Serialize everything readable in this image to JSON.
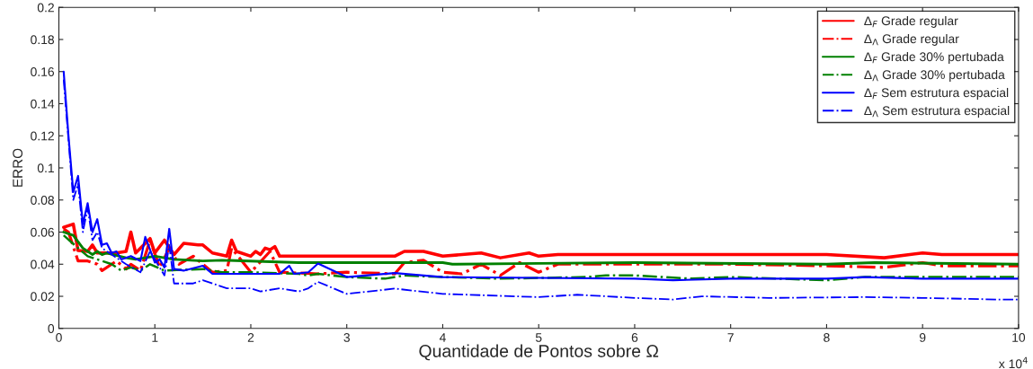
{
  "chart_data": {
    "type": "line",
    "xlabel": "Quantidade de Pontos sobre Ω",
    "ylabel": "ERRO",
    "xlim": [
      0,
      10
    ],
    "ylim": [
      0,
      0.2
    ],
    "xticks": [
      0,
      1,
      2,
      3,
      4,
      5,
      6,
      7,
      8,
      9,
      10
    ],
    "yticks": [
      0,
      0.02,
      0.04,
      0.06,
      0.08,
      0.1,
      0.12,
      0.14,
      0.16,
      0.18,
      0.2
    ],
    "legend": "top right",
    "grid": false,
    "marker": "none",
    "annotations": [
      "x 10$^{4}$"
    ],
    "series": [
      {
        "name": "Δ$_{F}$ Grade regular",
        "color": "#ff0000",
        "line_style": "solid",
        "x": [
          0.05,
          0.15,
          0.2,
          0.3,
          0.35,
          0.4,
          0.6,
          0.7,
          0.75,
          0.8,
          0.95,
          1.0,
          1.1,
          1.2,
          1.3,
          1.45,
          1.5,
          1.6,
          1.75,
          1.8,
          1.85,
          2.0,
          2.05,
          2.1,
          2.15,
          2.2,
          2.25,
          2.3,
          3.0,
          3.5,
          3.6,
          3.8,
          4.0,
          4.4,
          4.6,
          4.9,
          5.0,
          5.2,
          6.0,
          7.0,
          8.0,
          8.6,
          9.0,
          9.2,
          10.0
        ],
        "values": [
          0.063,
          0.065,
          0.0485,
          0.048,
          0.052,
          0.047,
          0.047,
          0.048,
          0.06,
          0.047,
          0.056,
          0.047,
          0.055,
          0.046,
          0.053,
          0.052,
          0.052,
          0.047,
          0.045,
          0.055,
          0.048,
          0.045,
          0.048,
          0.046,
          0.05,
          0.049,
          0.051,
          0.045,
          0.045,
          0.045,
          0.048,
          0.048,
          0.045,
          0.047,
          0.044,
          0.047,
          0.045,
          0.046,
          0.046,
          0.046,
          0.046,
          0.044,
          0.047,
          0.046,
          0.046
        ]
      },
      {
        "name": "Δ$_{Λ}$ Grade regular",
        "color": "#ff0000",
        "line_style": "dashed",
        "x": [
          0.05,
          0.1,
          0.2,
          0.3,
          0.4,
          0.45,
          0.6,
          0.7,
          0.75,
          0.85,
          0.95,
          1.05,
          1.15,
          1.25,
          1.4,
          1.6,
          1.75,
          1.8,
          2.0,
          2.2,
          2.3,
          2.7,
          3.0,
          3.5,
          3.6,
          3.8,
          4.0,
          4.2,
          4.4,
          4.6,
          4.8,
          5.0,
          5.2,
          6.0,
          7.0,
          8.0,
          8.6,
          9.0,
          9.2,
          10.0
        ],
        "values": [
          0.062,
          0.06,
          0.042,
          0.042,
          0.04,
          0.036,
          0.042,
          0.037,
          0.04,
          0.036,
          0.055,
          0.038,
          0.05,
          0.04,
          0.045,
          0.035,
          0.036,
          0.05,
          0.035,
          0.048,
          0.035,
          0.034,
          0.035,
          0.034,
          0.041,
          0.0425,
          0.035,
          0.034,
          0.04,
          0.033,
          0.041,
          0.035,
          0.04,
          0.04,
          0.04,
          0.039,
          0.038,
          0.041,
          0.039,
          0.039
        ]
      },
      {
        "name": "Δ$_{F}$ Grade 30% pertubada",
        "color": "#008000",
        "line_style": "solid",
        "x": [
          0.05,
          0.15,
          0.25,
          0.35,
          0.4,
          0.45,
          0.5,
          0.7,
          0.8,
          1.0,
          1.2,
          1.5,
          1.7,
          2.5,
          3.0,
          4.0,
          4.1,
          5.0,
          6.0,
          8.0,
          8.5,
          10.0
        ],
        "values": [
          0.06,
          0.058,
          0.05,
          0.046,
          0.048,
          0.046,
          0.047,
          0.044,
          0.043,
          0.045,
          0.043,
          0.042,
          0.0425,
          0.041,
          0.041,
          0.041,
          0.04,
          0.0405,
          0.041,
          0.04,
          0.041,
          0.04
        ]
      },
      {
        "name": "Δ$_{Λ}$ Grade 30% pertubada",
        "color": "#008000",
        "line_style": "dashed",
        "x": [
          0.05,
          0.2,
          0.3,
          0.45,
          0.55,
          0.65,
          0.75,
          0.85,
          0.95,
          1.1,
          1.5,
          1.7,
          2.0,
          2.5,
          2.6,
          2.7,
          3.0,
          3.4,
          3.6,
          4.0,
          4.6,
          5.5,
          5.7,
          6.0,
          6.6,
          7.0,
          8.0,
          8.4,
          10.0
        ],
        "values": [
          0.058,
          0.05,
          0.045,
          0.042,
          0.04,
          0.036,
          0.038,
          0.036,
          0.04,
          0.036,
          0.037,
          0.035,
          0.035,
          0.034,
          0.033,
          0.034,
          0.032,
          0.031,
          0.033,
          0.032,
          0.031,
          0.032,
          0.033,
          0.033,
          0.031,
          0.032,
          0.03,
          0.032,
          0.032
        ]
      },
      {
        "name": "Δ$_{F}$ Sem estrutura espacial",
        "color": "#0000ff",
        "line_style": "solid",
        "x": [
          0.05,
          0.1,
          0.15,
          0.2,
          0.25,
          0.3,
          0.35,
          0.4,
          0.45,
          0.5,
          0.55,
          0.6,
          0.65,
          0.75,
          0.85,
          0.9,
          1.0,
          1.05,
          1.1,
          1.15,
          1.2,
          1.3,
          1.5,
          1.6,
          2.0,
          2.3,
          2.4,
          2.45,
          2.6,
          2.7,
          3.0,
          3.5,
          4.0,
          5.0,
          6.0,
          6.4,
          7.0,
          8.0,
          8.4,
          9.0,
          10.0
        ],
        "values": [
          0.16,
          0.12,
          0.085,
          0.095,
          0.065,
          0.078,
          0.06,
          0.068,
          0.052,
          0.053,
          0.047,
          0.048,
          0.043,
          0.045,
          0.042,
          0.057,
          0.041,
          0.043,
          0.038,
          0.062,
          0.037,
          0.036,
          0.039,
          0.034,
          0.034,
          0.034,
          0.039,
          0.034,
          0.035,
          0.0404,
          0.032,
          0.0345,
          0.032,
          0.0315,
          0.031,
          0.03,
          0.031,
          0.031,
          0.032,
          0.031,
          0.031
        ]
      },
      {
        "name": "Δ$_{Λ}$ Sem estrutura espacial",
        "color": "#0000ff",
        "line_style": "dashed",
        "x": [
          0.05,
          0.15,
          0.2,
          0.25,
          0.3,
          0.35,
          0.4,
          0.45,
          0.55,
          0.7,
          0.85,
          0.95,
          1.1,
          1.15,
          1.2,
          1.4,
          1.5,
          1.75,
          2.0,
          2.1,
          2.3,
          2.5,
          2.6,
          2.7,
          3.0,
          3.5,
          4.0,
          5.0,
          5.4,
          6.0,
          6.4,
          6.7,
          7.4,
          8.4,
          9.0,
          9.8,
          10.0
        ],
        "values": [
          0.155,
          0.08,
          0.09,
          0.06,
          0.075,
          0.055,
          0.06,
          0.05,
          0.046,
          0.04,
          0.035,
          0.048,
          0.033,
          0.052,
          0.028,
          0.028,
          0.03,
          0.025,
          0.025,
          0.023,
          0.025,
          0.023,
          0.025,
          0.029,
          0.0215,
          0.0248,
          0.0215,
          0.0195,
          0.021,
          0.019,
          0.018,
          0.02,
          0.019,
          0.0195,
          0.019,
          0.018,
          0.018
        ]
      }
    ]
  }
}
